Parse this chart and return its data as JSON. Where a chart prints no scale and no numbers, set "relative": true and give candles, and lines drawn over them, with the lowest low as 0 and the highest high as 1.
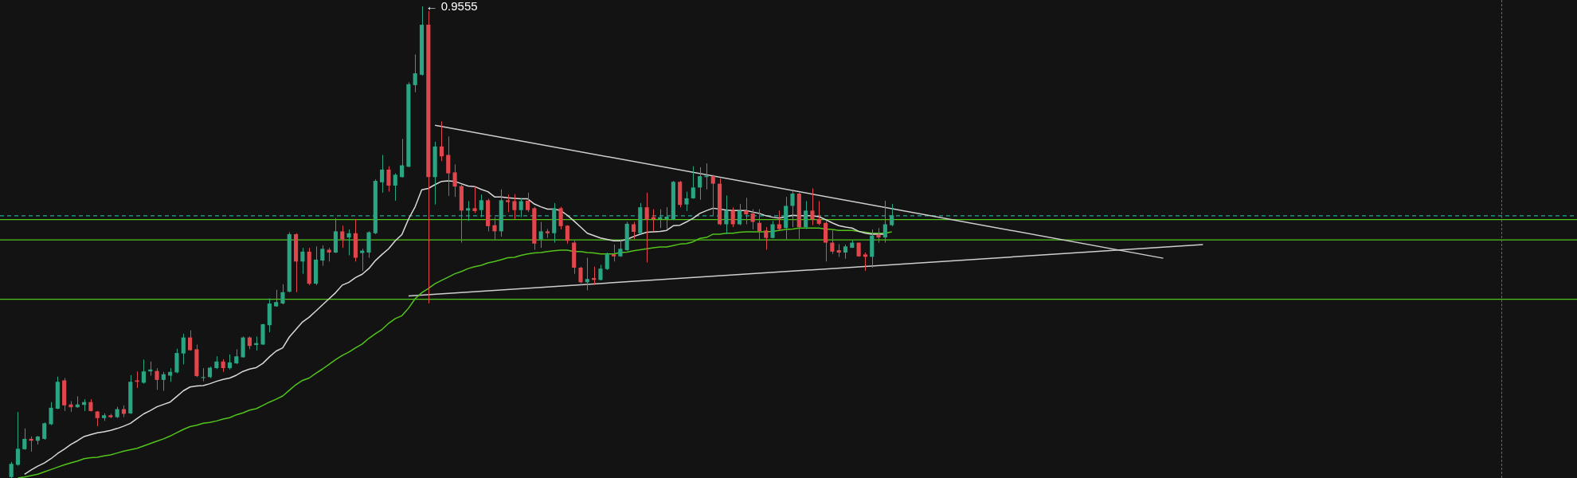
{
  "chart_data": {
    "type": "candlestick",
    "relative": true,
    "categories": [
      null,
      null,
      null,
      null,
      null,
      null,
      null,
      null,
      null,
      null,
      null,
      null,
      null,
      null,
      null,
      null,
      null,
      null,
      null,
      null,
      null,
      null,
      null,
      null,
      null,
      null,
      null,
      null,
      null,
      null,
      null,
      null,
      null,
      null,
      null,
      null,
      null,
      null,
      null,
      null,
      null,
      null,
      null,
      null,
      null,
      null,
      null,
      null,
      null,
      null,
      null,
      null,
      null,
      null,
      null,
      null,
      null,
      null,
      null,
      null,
      null,
      null,
      null,
      null,
      null,
      null,
      null,
      null,
      null,
      null,
      null,
      null,
      null,
      null,
      null,
      null,
      null,
      null,
      null,
      null,
      null,
      null,
      null,
      null,
      null,
      null,
      null,
      null,
      null,
      null,
      null,
      null,
      null,
      null,
      null,
      null,
      null,
      null,
      null,
      null,
      null,
      null,
      null,
      null,
      null,
      null,
      null,
      null,
      null,
      null,
      null,
      null,
      null,
      null,
      null,
      null,
      null,
      null,
      null,
      null,
      null,
      null,
      null,
      null,
      null,
      null,
      null,
      null,
      null,
      null,
      null,
      null,
      null,
      null,
      null,
      null,
      null,
      null,
      null,
      null,
      null,
      null,
      null,
      null,
      null,
      null,
      null,
      null,
      null,
      null,
      null,
      null,
      null,
      null,
      null,
      null,
      null,
      null,
      null,
      null,
      null,
      null,
      null,
      null,
      null,
      null,
      null,
      null,
      null,
      null,
      null,
      null,
      null,
      null,
      null,
      null,
      null,
      null,
      null,
      null,
      null,
      null,
      null,
      null,
      null,
      null,
      null,
      null,
      null,
      null,
      null,
      null,
      null,
      null,
      null,
      null,
      null,
      null,
      null,
      null,
      null,
      null,
      null,
      null,
      null,
      null,
      null,
      null,
      null,
      null,
      null,
      null,
      null,
      null,
      null,
      null,
      null,
      null,
      null,
      null,
      null,
      null,
      null,
      null,
      null,
      null,
      null,
      null,
      null,
      null,
      null,
      null,
      null,
      null,
      null,
      null,
      null
    ],
    "ohlc": [
      [
        0.002,
        0.034,
        0,
        0.03
      ],
      [
        0.028,
        0.14,
        0.026,
        0.062
      ],
      [
        0.061,
        0.105,
        0.06,
        0.083
      ],
      [
        0.083,
        0.088,
        0.056,
        0.079
      ],
      [
        0.079,
        0.089,
        0.071,
        0.088
      ],
      [
        0.083,
        0.118,
        0.081,
        0.116
      ],
      [
        0.114,
        0.161,
        0.112,
        0.149
      ],
      [
        0.147,
        0.215,
        0.146,
        0.204
      ],
      [
        0.207,
        0.212,
        0.142,
        0.154
      ],
      [
        0.156,
        0.163,
        0.14,
        0.15
      ],
      [
        0.15,
        0.173,
        0.149,
        0.156
      ],
      [
        0.155,
        0.167,
        0.142,
        0.161
      ],
      [
        0.161,
        0.167,
        0.141,
        0.142
      ],
      [
        0.141,
        0.142,
        0.11,
        0.127
      ],
      [
        0.127,
        0.137,
        0.121,
        0.133
      ],
      [
        0.133,
        0.136,
        0.127,
        0.129
      ],
      [
        0.129,
        0.151,
        0.127,
        0.146
      ],
      [
        0.146,
        0.154,
        0.129,
        0.136
      ],
      [
        0.137,
        0.218,
        0.136,
        0.204
      ],
      [
        0.207,
        0.226,
        0.191,
        0.204
      ],
      [
        0.202,
        0.251,
        0.2,
        0.226
      ],
      [
        0.226,
        0.247,
        0.217,
        0.23
      ],
      [
        0.227,
        0.233,
        0.187,
        0.208
      ],
      [
        0.208,
        0.225,
        0.185,
        0.22
      ],
      [
        0.217,
        0.233,
        0.204,
        0.225
      ],
      [
        0.224,
        0.274,
        0.222,
        0.265
      ],
      [
        0.264,
        0.306,
        0.241,
        0.298
      ],
      [
        0.298,
        0.313,
        0.27,
        0.271
      ],
      [
        0.273,
        0.283,
        0.214,
        0.216
      ],
      [
        0.212,
        0.233,
        0.205,
        0.214
      ],
      [
        0.214,
        0.236,
        0.212,
        0.234
      ],
      [
        0.233,
        0.258,
        0.231,
        0.247
      ],
      [
        0.247,
        0.252,
        0.225,
        0.233
      ],
      [
        0.233,
        0.262,
        0.23,
        0.245
      ],
      [
        0.243,
        0.273,
        0.242,
        0.258
      ],
      [
        0.256,
        0.3,
        0.255,
        0.298
      ],
      [
        0.298,
        0.3,
        0.273,
        0.28
      ],
      [
        0.282,
        0.3,
        0.27,
        0.286
      ],
      [
        0.283,
        0.327,
        0.282,
        0.326
      ],
      [
        0.324,
        0.381,
        0.309,
        0.37
      ],
      [
        0.364,
        0.399,
        0.363,
        0.373
      ],
      [
        0.37,
        0.411,
        0.368,
        0.394
      ],
      [
        0.395,
        0.521,
        0.394,
        0.517
      ],
      [
        0.517,
        0.519,
        0.394,
        0.459
      ],
      [
        0.459,
        0.488,
        0.433,
        0.48
      ],
      [
        0.48,
        0.488,
        0.409,
        0.412
      ],
      [
        0.412,
        0.491,
        0.409,
        0.463
      ],
      [
        0.461,
        0.493,
        0.45,
        0.486
      ],
      [
        0.484,
        0.488,
        0.459,
        0.478
      ],
      [
        0.478,
        0.551,
        0.477,
        0.523
      ],
      [
        0.523,
        0.535,
        0.488,
        0.506
      ],
      [
        0.51,
        0.527,
        0.472,
        0.519
      ],
      [
        0.519,
        0.549,
        0.459,
        0.467
      ],
      [
        0.477,
        0.486,
        0.439,
        0.482
      ],
      [
        0.478,
        0.523,
        0.467,
        0.521
      ],
      [
        0.519,
        0.633,
        0.517,
        0.63
      ],
      [
        0.627,
        0.685,
        0.605,
        0.654
      ],
      [
        0.654,
        0.661,
        0.607,
        0.62
      ],
      [
        0.62,
        0.646,
        0.588,
        0.643
      ],
      [
        0.638,
        0.719,
        0.637,
        0.663
      ],
      [
        0.66,
        0.839,
        0.659,
        0.835
      ],
      [
        0.833,
        0.898,
        0.818,
        0.858
      ],
      [
        0.855,
        1,
        0.853,
        0.961
      ],
      [
        0.961,
        0.99,
        0.37,
        0.638
      ],
      [
        0.638,
        0.713,
        0.58,
        0.703
      ],
      [
        0.703,
        0.756,
        0.672,
        0.682
      ],
      [
        0.685,
        0.724,
        0.598,
        0.646
      ],
      [
        0.648,
        0.665,
        0.596,
        0.618
      ],
      [
        0.619,
        0.622,
        0.499,
        0.567
      ],
      [
        0.567,
        0.587,
        0.545,
        0.572
      ],
      [
        0.572,
        0.618,
        0.562,
        0.566
      ],
      [
        0.568,
        0.601,
        0.553,
        0.589
      ],
      [
        0.589,
        0.592,
        0.523,
        0.534
      ],
      [
        0.536,
        0.553,
        0.504,
        0.523
      ],
      [
        0.523,
        0.612,
        0.512,
        0.589
      ],
      [
        0.589,
        0.601,
        0.564,
        0.585
      ],
      [
        0.587,
        0.602,
        0.549,
        0.568
      ],
      [
        0.568,
        0.593,
        0.553,
        0.587
      ],
      [
        0.588,
        0.605,
        0.564,
        0.568
      ],
      [
        0.572,
        0.575,
        0.484,
        0.497
      ],
      [
        0.506,
        0.543,
        0.488,
        0.523
      ],
      [
        0.523,
        0.528,
        0.509,
        0.519
      ],
      [
        0.519,
        0.583,
        0.499,
        0.572
      ],
      [
        0.572,
        0.575,
        0.527,
        0.534
      ],
      [
        0.535,
        0.536,
        0.497,
        0.503
      ],
      [
        0.499,
        0.503,
        0.433,
        0.446
      ],
      [
        0.446,
        0.448,
        0.413,
        0.415
      ],
      [
        0.415,
        0.467,
        0.398,
        0.422
      ],
      [
        0.424,
        0.448,
        0.409,
        0.42
      ],
      [
        0.42,
        0.452,
        0.419,
        0.444
      ],
      [
        0.443,
        0.478,
        0.441,
        0.474
      ],
      [
        0.474,
        0.495,
        0.459,
        0.47
      ],
      [
        0.47,
        0.506,
        0.469,
        0.486
      ],
      [
        0.483,
        0.543,
        0.482,
        0.539
      ],
      [
        0.538,
        0.543,
        0.506,
        0.522
      ],
      [
        0.519,
        0.583,
        0.517,
        0.574
      ],
      [
        0.574,
        0.605,
        0.457,
        0.549
      ],
      [
        0.553,
        0.57,
        0.523,
        0.549
      ],
      [
        0.549,
        0.57,
        0.53,
        0.553
      ],
      [
        0.549,
        0.574,
        0.528,
        0.554
      ],
      [
        0.548,
        0.63,
        0.547,
        0.628
      ],
      [
        0.628,
        0.63,
        0.574,
        0.579
      ],
      [
        0.58,
        0.607,
        0.566,
        0.593
      ],
      [
        0.593,
        0.661,
        0.592,
        0.616
      ],
      [
        0.616,
        0.659,
        0.59,
        0.64
      ],
      [
        0.638,
        0.667,
        0.612,
        0.641
      ],
      [
        0.64,
        0.643,
        0.557,
        0.624
      ],
      [
        0.624,
        0.635,
        0.536,
        0.538
      ],
      [
        0.538,
        0.599,
        0.517,
        0.567
      ],
      [
        0.567,
        0.574,
        0.532,
        0.538
      ],
      [
        0.538,
        0.581,
        0.536,
        0.567
      ],
      [
        0.567,
        0.594,
        0.538,
        0.559
      ],
      [
        0.561,
        0.57,
        0.527,
        0.543
      ],
      [
        0.541,
        0.57,
        0.506,
        0.523
      ],
      [
        0.525,
        0.532,
        0.484,
        0.509
      ],
      [
        0.509,
        0.545,
        0.508,
        0.538
      ],
      [
        0.538,
        0.567,
        0.525,
        0.528
      ],
      [
        0.53,
        0.596,
        0.506,
        0.577
      ],
      [
        0.577,
        0.609,
        0.532,
        0.603
      ],
      [
        0.603,
        0.605,
        0.506,
        0.532
      ],
      [
        0.532,
        0.587,
        0.528,
        0.567
      ],
      [
        0.567,
        0.614,
        0.536,
        0.549
      ],
      [
        0.549,
        0.587,
        0.536,
        0.539
      ],
      [
        0.541,
        0.545,
        0.459,
        0.499
      ],
      [
        0.499,
        0.527,
        0.475,
        0.48
      ],
      [
        0.483,
        0.496,
        0.469,
        0.478
      ],
      [
        0.478,
        0.495,
        0.465,
        0.491
      ],
      [
        0.488,
        0.504,
        0.488,
        0.499
      ],
      [
        0.499,
        0.499,
        0.469,
        0.47
      ],
      [
        0.474,
        0.478,
        0.439,
        0.469
      ],
      [
        0.469,
        0.527,
        0.446,
        0.514
      ],
      [
        0.516,
        0.53,
        0.499,
        0.51
      ],
      [
        0.51,
        0.588,
        0.499,
        0.538
      ],
      [
        0.536,
        0.581,
        0.534,
        0.557
      ],
      null,
      null,
      null,
      null,
      null,
      null,
      null,
      null,
      null,
      null,
      null,
      null,
      null,
      null,
      null,
      null,
      null,
      null,
      null,
      null,
      null,
      null,
      null,
      null,
      null,
      null,
      null,
      null,
      null,
      null,
      null,
      null,
      null,
      null,
      null,
      null,
      null,
      null,
      null,
      null,
      null,
      null,
      null,
      null,
      null,
      null,
      null,
      null,
      null,
      null,
      null,
      null,
      null,
      null,
      null,
      null,
      null,
      null,
      null,
      null,
      null,
      null,
      null,
      null,
      null,
      null,
      null,
      null,
      null,
      null,
      null,
      null,
      null,
      null,
      null,
      null,
      null,
      null,
      null,
      null,
      null,
      null,
      null,
      null,
      null,
      null,
      null,
      null,
      null,
      null,
      null,
      null,
      null,
      null,
      null,
      null,
      null,
      null,
      null,
      null,
      null,
      null,
      null
    ],
    "colors": [
      "#2aa584",
      "#2aa584",
      "#2aa584",
      "#e0474c",
      "#2aa584",
      "#2aa584",
      "#2aa584",
      "#2aa584",
      "#e0474c",
      "#e0474c",
      "#2aa584",
      "#2aa584",
      "#e0474c",
      "#e0474c",
      "#2aa584",
      "#e0474c",
      "#2aa584",
      "#e0474c",
      "#2aa584",
      "#e0474c",
      "#2aa584",
      "#2aa584",
      "#e0474c",
      "#2aa584",
      "#2aa584",
      "#2aa584",
      "#2aa584",
      "#e0474c",
      "#e0474c",
      "#2aa584",
      "#2aa584",
      "#2aa584",
      "#e0474c",
      "#2aa584",
      "#2aa584",
      "#2aa584",
      "#e0474c",
      "#2aa584",
      "#2aa584",
      "#2aa584",
      "#2aa584",
      "#2aa584",
      "#2aa584",
      "#e0474c",
      "#2aa584",
      "#e0474c",
      "#2aa584",
      "#2aa584",
      "#e0474c",
      "#2aa584",
      "#e0474c",
      "#2aa584",
      "#e0474c",
      "#2aa584",
      "#2aa584",
      "#2aa584",
      "#2aa584",
      "#e0474c",
      "#2aa584",
      "#2aa584",
      "#2aa584",
      "#2aa584",
      "#2aa584",
      "#e0474c",
      "#2aa584",
      "#e0474c",
      "#e0474c",
      "#e0474c",
      "#e0474c",
      "#2aa584",
      "#e0474c",
      "#2aa584",
      "#e0474c",
      "#e0474c",
      "#2aa584",
      "#e0474c",
      "#e0474c",
      "#2aa584",
      "#e0474c",
      "#e0474c",
      "#2aa584",
      "#e0474c",
      "#2aa584",
      "#e0474c",
      "#e0474c",
      "#e0474c",
      "#e0474c",
      "#2aa584",
      "#e0474c",
      "#2aa584",
      "#2aa584",
      "#e0474c",
      "#2aa584",
      "#2aa584",
      "#e0474c",
      "#2aa584",
      "#e0474c",
      "#e0474c",
      "#2aa584",
      "#2aa584",
      "#2aa584",
      "#e0474c",
      "#2aa584",
      "#2aa584",
      "#2aa584",
      "#2aa584",
      "#e0474c",
      "#e0474c",
      "#2aa584",
      "#e0474c",
      "#2aa584",
      "#e0474c",
      "#e0474c",
      "#e0474c",
      "#e0474c",
      "#2aa584",
      "#e0474c",
      "#2aa584",
      "#2aa584",
      "#e0474c",
      "#2aa584",
      "#e0474c",
      "#e0474c",
      "#e0474c",
      "#e0474c",
      "#e0474c",
      "#2aa584",
      "#2aa584",
      "#e0474c",
      "#e0474c",
      "#2aa584",
      "#e0474c",
      "#2aa584",
      "#2aa584",
      null,
      null,
      null,
      null,
      null,
      null,
      null,
      null,
      null,
      null,
      null,
      null,
      null,
      null,
      null,
      null,
      null,
      null,
      null,
      null,
      null,
      null,
      null,
      null,
      null,
      null,
      null,
      null,
      null,
      null,
      null,
      null,
      null,
      null,
      null,
      null,
      null,
      null,
      null,
      null,
      null,
      null,
      null,
      null,
      null,
      null,
      null,
      null,
      null,
      null,
      null,
      null,
      null,
      null,
      null,
      null,
      null,
      null,
      null,
      null,
      null,
      null,
      null,
      null,
      null,
      null,
      null,
      null,
      null,
      null,
      null,
      null,
      null,
      null,
      null,
      null,
      null,
      null,
      null,
      null,
      null,
      null,
      null,
      null,
      null,
      null,
      null,
      null,
      null,
      null,
      null,
      null,
      null,
      null,
      null,
      null,
      null,
      null,
      null,
      null,
      null,
      null,
      null
    ],
    "series": [
      {
        "type": "line",
        "color": "#d9d9d9",
        "values": [
          null,
          null,
          0.008,
          0.017,
          0.025,
          0.032,
          0.041,
          0.052,
          0.061,
          0.071,
          0.079,
          0.088,
          0.092,
          0.096,
          0.098,
          0.101,
          0.105,
          0.11,
          0.116,
          0.126,
          0.136,
          0.143,
          0.151,
          0.156,
          0.161,
          0.173,
          0.185,
          0.193,
          0.195,
          0.196,
          0.2,
          0.205,
          0.209,
          0.212,
          0.218,
          0.226,
          0.231,
          0.234,
          0.243,
          0.257,
          0.269,
          0.276,
          0.299,
          0.315,
          0.331,
          0.341,
          0.354,
          0.367,
          0.38,
          0.393,
          0.409,
          0.415,
          0.425,
          0.432,
          0.444,
          0.461,
          0.474,
          0.486,
          0.503,
          0.516,
          0.549,
          0.575,
          0.611,
          0.614,
          0.622,
          0.629,
          0.63,
          0.629,
          0.624,
          0.619,
          0.618,
          0.612,
          0.607,
          0.596,
          0.596,
          0.594,
          0.593,
          0.592,
          0.592,
          0.581,
          0.575,
          0.57,
          0.57,
          0.567,
          0.557,
          0.545,
          0.532,
          0.519,
          0.514,
          0.509,
          0.506,
          0.503,
          0.503,
          0.506,
          0.512,
          0.517,
          0.521,
          0.522,
          0.523,
          0.525,
          0.535,
          0.536,
          0.543,
          0.551,
          0.561,
          0.567,
          0.572,
          0.57,
          0.568,
          0.567,
          0.567,
          0.567,
          0.564,
          0.561,
          0.556,
          0.553,
          0.551,
          0.554,
          0.557,
          0.556,
          0.556,
          0.556,
          0.554,
          0.548,
          0.541,
          0.535,
          0.532,
          0.53,
          0.523,
          0.519,
          0.517,
          0.517,
          0.517,
          null,
          null,
          null,
          null,
          null,
          null,
          null,
          null,
          null,
          null,
          null,
          null,
          null,
          null,
          null,
          null,
          null,
          null,
          null,
          null,
          null,
          null,
          null,
          null,
          null,
          null,
          null,
          null,
          null,
          null,
          null,
          null,
          null,
          null,
          null,
          null,
          null,
          null,
          null,
          null,
          null,
          null,
          null,
          null,
          null,
          null,
          null,
          null,
          null,
          null,
          null,
          null,
          null,
          null,
          null,
          null,
          null,
          null,
          null,
          null,
          null,
          null,
          null,
          null,
          null,
          null,
          null,
          null,
          null,
          null,
          null,
          null,
          null,
          null,
          null,
          null,
          null,
          null,
          null,
          null,
          null,
          null,
          null,
          null,
          null,
          null,
          null,
          null,
          null,
          null,
          null,
          null,
          null,
          null,
          null,
          null,
          null,
          null,
          null,
          null,
          null,
          null,
          null,
          null
        ]
      },
      {
        "type": "line",
        "color": "#52c41a",
        "values": [
          null,
          0,
          0.002,
          0.005,
          0.008,
          0.013,
          0.018,
          0.023,
          0.028,
          0.032,
          0.036,
          0.041,
          0.043,
          0.044,
          0.047,
          0.049,
          0.053,
          0.057,
          0.06,
          0.063,
          0.068,
          0.073,
          0.078,
          0.083,
          0.089,
          0.096,
          0.103,
          0.109,
          0.112,
          0.116,
          0.118,
          0.121,
          0.125,
          0.128,
          0.134,
          0.138,
          0.144,
          0.147,
          0.154,
          0.161,
          0.167,
          0.174,
          0.186,
          0.198,
          0.207,
          0.212,
          0.222,
          0.231,
          0.241,
          0.251,
          0.26,
          0.267,
          0.276,
          0.284,
          0.296,
          0.306,
          0.315,
          0.328,
          0.338,
          0.344,
          0.36,
          0.38,
          0.393,
          0.402,
          0.412,
          0.419,
          0.426,
          0.433,
          0.438,
          0.444,
          0.448,
          0.451,
          0.456,
          0.459,
          0.463,
          0.467,
          0.468,
          0.472,
          0.475,
          0.477,
          0.478,
          0.48,
          0.482,
          0.483,
          0.483,
          0.48,
          0.48,
          0.478,
          0.477,
          0.475,
          0.475,
          0.475,
          0.478,
          0.479,
          0.482,
          0.484,
          0.486,
          0.488,
          0.49,
          0.49,
          0.493,
          0.496,
          0.497,
          0.501,
          0.508,
          0.51,
          0.517,
          0.517,
          0.519,
          0.519,
          0.521,
          0.522,
          0.522,
          0.522,
          0.522,
          0.523,
          0.525,
          0.527,
          0.528,
          0.53,
          0.53,
          0.53,
          0.53,
          0.528,
          0.527,
          0.525,
          0.525,
          0.525,
          0.523,
          0.521,
          0.519,
          0.519,
          0.519,
          0.522,
          null,
          null,
          null,
          null,
          null,
          null,
          null,
          null,
          null,
          null,
          null,
          null,
          null,
          null,
          null,
          null,
          null,
          null,
          null,
          null,
          null,
          null,
          null,
          null,
          null,
          null,
          null,
          null,
          null,
          null,
          null,
          null,
          null,
          null,
          null,
          null,
          null,
          null,
          null,
          null,
          null,
          null,
          null,
          null,
          null,
          null,
          null,
          null,
          null,
          null,
          null,
          null,
          null,
          null,
          null,
          null,
          null,
          null,
          null,
          null,
          null,
          null,
          null,
          null,
          null,
          null,
          null,
          null,
          null,
          null,
          null,
          null,
          null,
          null,
          null,
          null,
          null,
          null,
          null,
          null,
          null,
          null,
          null,
          null,
          null,
          null,
          null,
          null,
          null,
          null,
          null,
          null,
          null,
          null,
          null,
          null,
          null,
          null,
          null,
          null,
          null,
          null,
          null
        ]
      },
      {
        "type": "line",
        "color": "#cfcfcf",
        "values": [
          null,
          null,
          null,
          null,
          null,
          null,
          null,
          null,
          null,
          null,
          null,
          null,
          null,
          null,
          null,
          null,
          null,
          null,
          null,
          null,
          null,
          null,
          null,
          null,
          null,
          null,
          null,
          null,
          null,
          null,
          null,
          null,
          null,
          null,
          null,
          null,
          null,
          null,
          null,
          null,
          null,
          null,
          null,
          null,
          null,
          null,
          null,
          null,
          null,
          null,
          null,
          null,
          null,
          null,
          null,
          null,
          null,
          null,
          null,
          null,
          null,
          null,
          null,
          null,
          0.748,
          null,
          null,
          null,
          null,
          null,
          null,
          null,
          null,
          null,
          null,
          null,
          null,
          null,
          null,
          null,
          null,
          null,
          null,
          null,
          null,
          null,
          null,
          null,
          null,
          null,
          null,
          null,
          null,
          null,
          null,
          null,
          null,
          null,
          null,
          null,
          null,
          null,
          null,
          null,
          null,
          null,
          null,
          null,
          null,
          null,
          null,
          null,
          null,
          null,
          null,
          null,
          null,
          null,
          null,
          null,
          null,
          null,
          null,
          null,
          null,
          null,
          null,
          null,
          null,
          null,
          null,
          null,
          null,
          null,
          null,
          null,
          null,
          null,
          null,
          null,
          null,
          null,
          null,
          null,
          null,
          null,
          null,
          null,
          null,
          null,
          null,
          null,
          null,
          null,
          null,
          null,
          null,
          null,
          null,
          null,
          null,
          null,
          null,
          null,
          null,
          null,
          null,
          null,
          null,
          null,
          null,
          null,
          null,
          null,
          0.466,
          null,
          null,
          null,
          null,
          null,
          null,
          null,
          null,
          null,
          null,
          null,
          null,
          null,
          null,
          null,
          null,
          null,
          null,
          null,
          null,
          null,
          null,
          null,
          null,
          null,
          null,
          null,
          null,
          null,
          null,
          null,
          null,
          null,
          null,
          null,
          null,
          null,
          null,
          null,
          null,
          null,
          null,
          null,
          null,
          null,
          null,
          null,
          null,
          null,
          null,
          null,
          null,
          null,
          null,
          null,
          null,
          null,
          null,
          null,
          null,
          null,
          null
        ]
      },
      {
        "type": "line",
        "color": "#cfcfcf",
        "values": [
          null,
          null,
          null,
          null,
          null,
          null,
          null,
          null,
          null,
          null,
          null,
          null,
          null,
          null,
          null,
          null,
          null,
          null,
          null,
          null,
          null,
          null,
          null,
          null,
          null,
          null,
          null,
          null,
          null,
          null,
          null,
          null,
          null,
          null,
          null,
          null,
          null,
          null,
          null,
          null,
          null,
          null,
          null,
          null,
          null,
          null,
          null,
          null,
          null,
          null,
          null,
          null,
          null,
          null,
          null,
          null,
          null,
          null,
          null,
          null,
          0.386,
          null,
          null,
          null,
          null,
          null,
          null,
          null,
          null,
          null,
          null,
          null,
          null,
          null,
          null,
          null,
          null,
          null,
          null,
          null,
          null,
          null,
          null,
          null,
          null,
          null,
          null,
          null,
          null,
          null,
          null,
          null,
          null,
          null,
          null,
          null,
          null,
          null,
          null,
          null,
          null,
          null,
          null,
          null,
          null,
          null,
          null,
          null,
          null,
          null,
          null,
          null,
          null,
          null,
          null,
          null,
          null,
          null,
          null,
          null,
          null,
          null,
          null,
          null,
          null,
          null,
          null,
          null,
          null,
          null,
          null,
          null,
          null,
          null,
          null,
          null,
          null,
          null,
          null,
          null,
          null,
          null,
          null,
          null,
          null,
          null,
          null,
          null,
          null,
          null,
          null,
          null,
          null,
          null,
          null,
          null,
          null,
          null,
          null,
          null,
          null,
          null,
          null,
          null,
          null,
          null,
          null,
          null,
          null,
          null,
          null,
          null,
          null,
          null,
          null,
          null,
          null,
          null,
          null,
          null,
          0.495,
          null,
          null,
          null,
          null,
          null,
          null,
          null,
          null,
          null,
          null,
          null,
          null,
          null,
          null,
          null,
          null,
          null,
          null,
          null,
          null,
          null,
          null,
          null,
          null,
          null,
          null,
          null,
          null,
          null,
          null,
          null,
          null,
          null,
          null,
          null,
          null,
          null,
          null,
          null,
          null,
          null,
          null,
          null,
          null,
          null,
          null,
          null,
          null,
          null,
          null,
          null,
          null,
          null,
          null,
          null,
          null
        ]
      }
    ],
    "ref_lines": [
      {
        "axis": "y",
        "value": 0.556,
        "color": "#26a69a",
        "line_style": "dashed"
      },
      {
        "axis": "y",
        "value": 0.548,
        "color": "#52c41a",
        "line_style": "solid"
      },
      {
        "axis": "y",
        "value": 0.505,
        "color": "#52c41a",
        "line_style": "solid"
      },
      {
        "axis": "y",
        "value": 0.379,
        "color": "#52c41a",
        "line_style": "solid"
      }
    ],
    "annotations": [
      "← 0.9555"
    ]
  }
}
